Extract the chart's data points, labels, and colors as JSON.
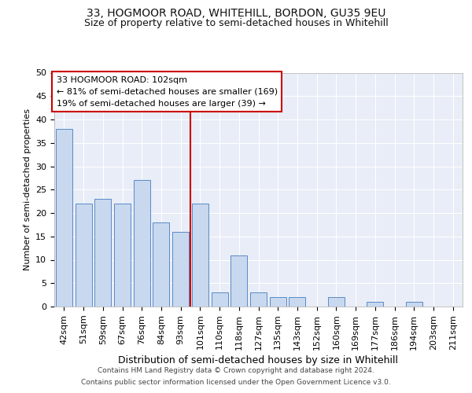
{
  "title1": "33, HOGMOOR ROAD, WHITEHILL, BORDON, GU35 9EU",
  "title2": "Size of property relative to semi-detached houses in Whitehill",
  "xlabel": "Distribution of semi-detached houses by size in Whitehill",
  "ylabel": "Number of semi-detached properties",
  "categories": [
    "42sqm",
    "51sqm",
    "59sqm",
    "67sqm",
    "76sqm",
    "84sqm",
    "93sqm",
    "101sqm",
    "110sqm",
    "118sqm",
    "127sqm",
    "135sqm",
    "143sqm",
    "152sqm",
    "160sqm",
    "169sqm",
    "177sqm",
    "186sqm",
    "194sqm",
    "203sqm",
    "211sqm"
  ],
  "values": [
    38,
    22,
    23,
    22,
    27,
    18,
    16,
    22,
    3,
    11,
    3,
    2,
    2,
    0,
    2,
    0,
    1,
    0,
    1,
    0,
    0
  ],
  "bar_color": "#c8d8ef",
  "bar_edge_color": "#5a8ac6",
  "vline_x": 6.5,
  "vline_color": "#cc0000",
  "annotation_text": "33 HOGMOOR ROAD: 102sqm\n← 81% of semi-detached houses are smaller (169)\n19% of semi-detached houses are larger (39) →",
  "annotation_box_color": "white",
  "annotation_box_edge": "#cc0000",
  "footer1": "Contains HM Land Registry data © Crown copyright and database right 2024.",
  "footer2": "Contains public sector information licensed under the Open Government Licence v3.0.",
  "ylim": [
    0,
    50
  ],
  "yticks": [
    0,
    5,
    10,
    15,
    20,
    25,
    30,
    35,
    40,
    45,
    50
  ],
  "bg_color": "#e8edf7",
  "fig_bg": "#ffffff",
  "title1_fontsize": 10,
  "title2_fontsize": 9,
  "xlabel_fontsize": 9,
  "ylabel_fontsize": 8,
  "tick_fontsize": 8,
  "annot_fontsize": 8
}
